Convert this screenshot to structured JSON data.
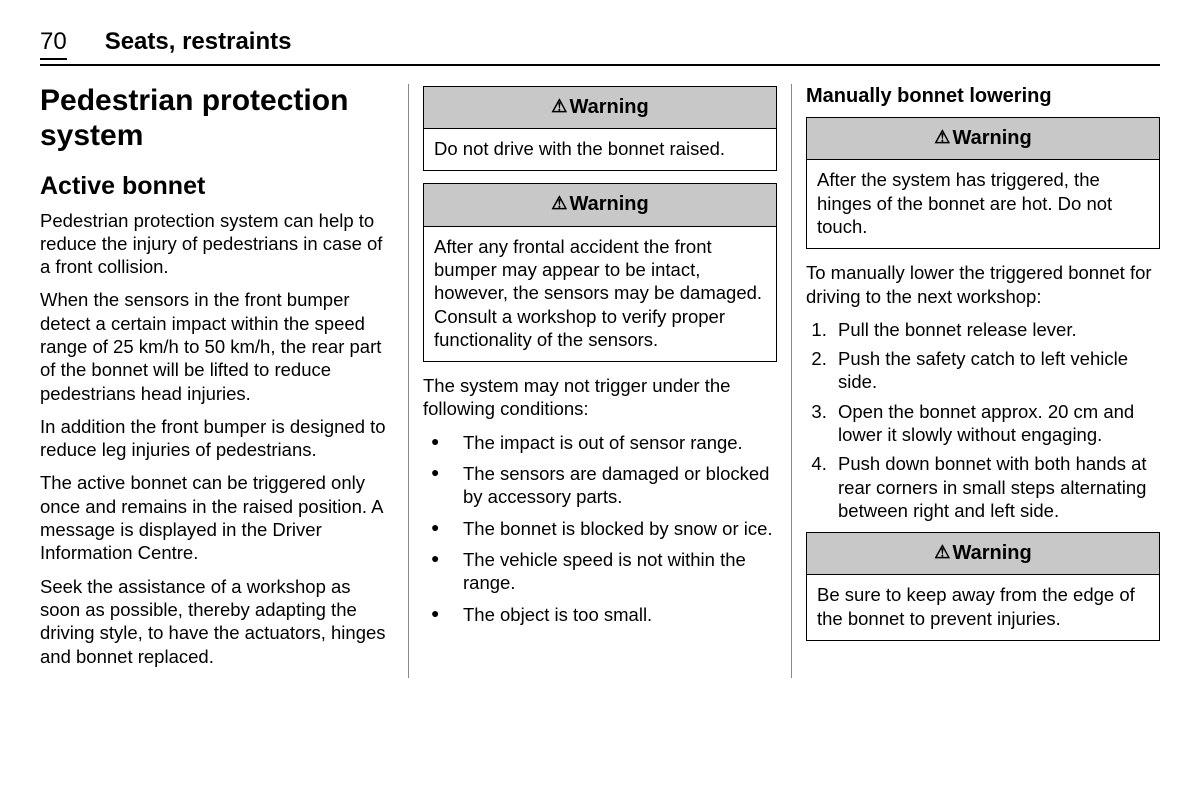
{
  "header": {
    "page_number": "70",
    "section": "Seats, restraints"
  },
  "col1": {
    "title": "Pedestrian protection system",
    "subtitle": "Active bonnet",
    "p1": "Pedestrian protection system can help to reduce the injury of pedestrians in case of a front collision.",
    "p2": "When the sensors in the front bumper detect a certain impact within the speed range of 25 km/h to 50 km/h, the rear part of the bonnet will be lifted to reduce pedestrians head injuries.",
    "p3": "In addition the front bumper is designed to reduce leg injuries of pedestrians.",
    "p4": "The active bonnet can be triggered only once and remains in the raised position. A message is displayed in the Driver Information Centre.",
    "p5": "Seek the assistance of a workshop as soon as possible, thereby adapting the driving style, to have the actuators, hinges and bonnet replaced."
  },
  "col2": {
    "warning1_label": "Warning",
    "warning1_body": "Do not drive with the bonnet raised.",
    "warning2_label": "Warning",
    "warning2_body": "After any frontal accident the front bumper may appear to be intact, however, the sensors may be damaged. Consult a workshop to verify proper functionality of the sensors.",
    "conditions_intro": "The system may not trigger under the following conditions:",
    "bullets": [
      "The impact is out of sensor range.",
      "The sensors are damaged or blocked by accessory parts.",
      "The bonnet is blocked by snow or ice.",
      "The vehicle speed is not within the range.",
      "The object is too small."
    ]
  },
  "col3": {
    "heading": "Manually bonnet lowering",
    "warning1_label": "Warning",
    "warning1_body": "After the system has triggered, the hinges of the bonnet are hot. Do not touch.",
    "intro": "To manually lower the triggered bonnet for driving to the next workshop:",
    "steps": [
      "Pull the bonnet release lever.",
      "Push the safety catch to left vehicle side.",
      "Open the bonnet approx. 20 cm and lower it slowly without engaging.",
      "Push down bonnet with both hands at rear corners in small steps alternating between right and left side."
    ],
    "warning2_label": "Warning",
    "warning2_body": "Be sure to keep away from the edge of the bonnet to prevent injuries."
  }
}
